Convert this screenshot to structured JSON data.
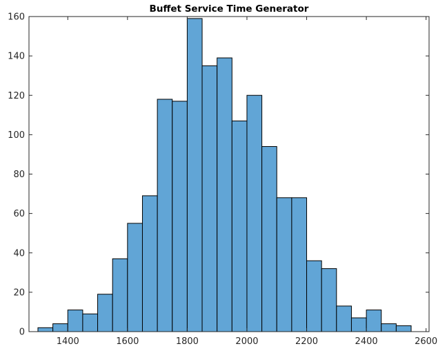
{
  "chart_data": {
    "type": "bar",
    "title": "Buffet Service Time Generator",
    "xlabel": "",
    "ylabel": "",
    "xlim": [
      1270,
      2610
    ],
    "ylim": [
      0,
      160
    ],
    "xticks": [
      1400,
      1600,
      1800,
      2000,
      2200,
      2400,
      2600
    ],
    "yticks": [
      0,
      20,
      40,
      60,
      80,
      100,
      120,
      140,
      160
    ],
    "bin_width": 50,
    "bin_edges": [
      1300,
      1350,
      1400,
      1450,
      1500,
      1550,
      1600,
      1650,
      1700,
      1750,
      1800,
      1850,
      1900,
      1950,
      2000,
      2050,
      2100,
      2150,
      2200,
      2250,
      2300,
      2350,
      2400,
      2450,
      2500,
      2550
    ],
    "values": [
      2,
      4,
      11,
      9,
      19,
      37,
      55,
      69,
      118,
      117,
      159,
      135,
      139,
      107,
      120,
      94,
      68,
      68,
      36,
      32,
      13,
      7,
      11,
      4,
      3
    ],
    "bar_color": "#61a5d6",
    "edge_color": "#000000",
    "grid": false,
    "legend": "none"
  }
}
